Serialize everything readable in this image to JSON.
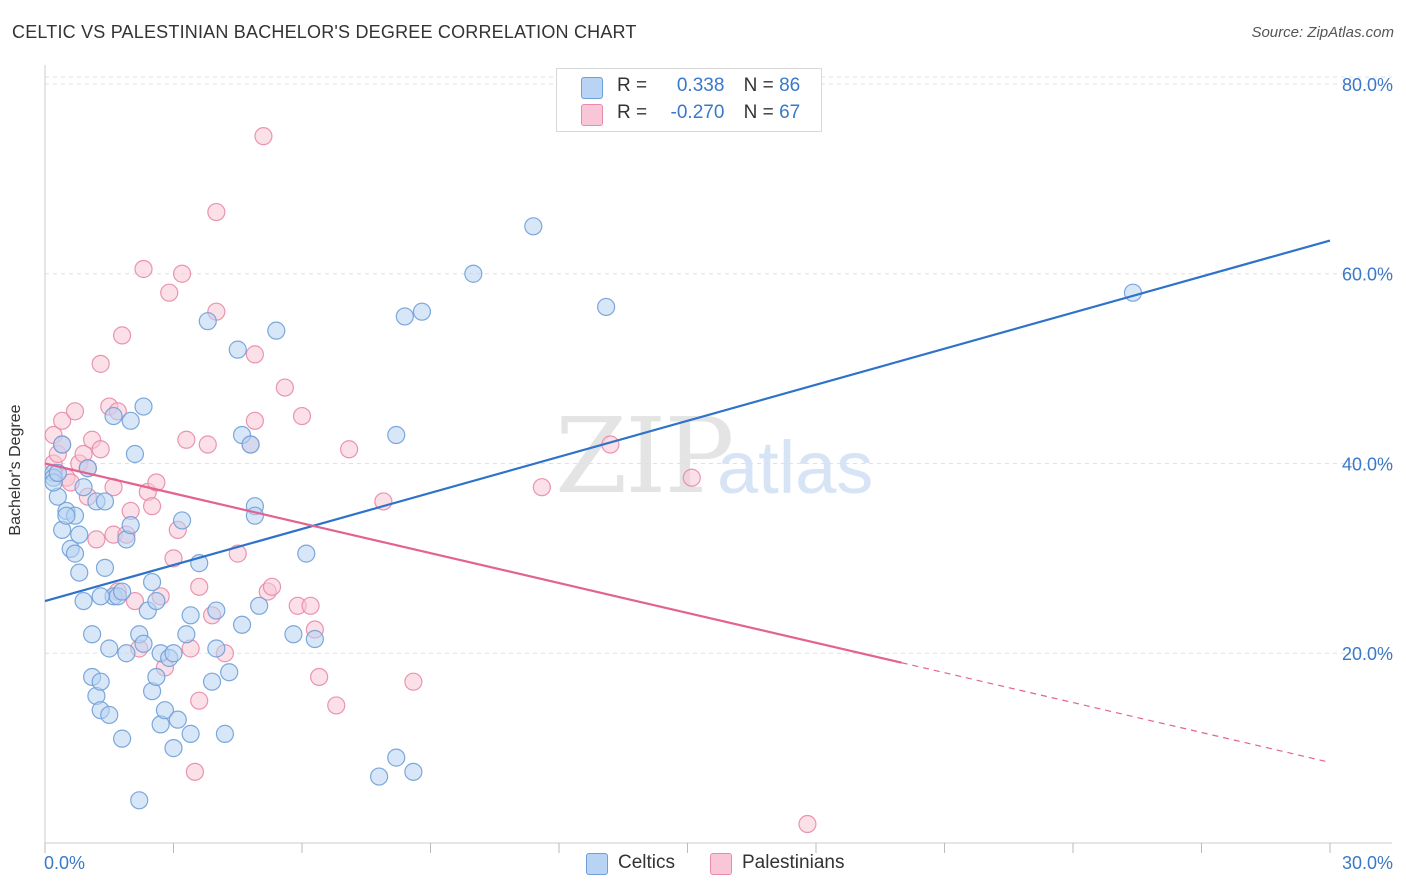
{
  "title": "CELTIC VS PALESTINIAN BACHELOR'S DEGREE CORRELATION CHART",
  "source": "Source: ZipAtlas.com",
  "watermark": {
    "zip": "ZIP",
    "atlas": "atlas"
  },
  "legend": {
    "rows": [
      {
        "r_label": "R =",
        "r_value": "0.338",
        "n_label": "N =",
        "n_value": "86"
      },
      {
        "r_label": "R =",
        "r_value": "-0.270",
        "n_label": "N =",
        "n_value": "67"
      }
    ]
  },
  "colors": {
    "celtic_fill": "#b8d3f3",
    "celtic_stroke": "#6f9fd8",
    "celtic_line": "#2f73c9",
    "palestinian_fill": "#f8c6d6",
    "palestinian_stroke": "#e88aaa",
    "palestinian_line": "#e2638f",
    "tick_label": "#3a78c9",
    "grid": "#e0e0e0"
  },
  "chart_data": {
    "type": "scatter",
    "title": "CELTIC VS PALESTINIAN BACHELOR'S DEGREE CORRELATION CHART",
    "xlabel": "",
    "ylabel": "Bachelor's Degree",
    "xlim": [
      0,
      30
    ],
    "ylim": [
      0,
      82
    ],
    "x_tick_labels": [
      "0.0%",
      "30.0%"
    ],
    "y_ticks": [
      20,
      40,
      60,
      80
    ],
    "y_tick_labels": [
      "20.0%",
      "40.0%",
      "60.0%",
      "80.0%"
    ],
    "grid": "horizontal dashed",
    "legend_position": "bottom-center",
    "series": [
      {
        "name": "Celtics",
        "r": 0.338,
        "n": 86,
        "trend": {
          "x": [
            0,
            30
          ],
          "y": [
            25.5,
            63.5
          ],
          "style": "solid"
        },
        "points": [
          [
            0.2,
            39.0
          ],
          [
            0.2,
            38.5
          ],
          [
            0.3,
            36.5
          ],
          [
            0.4,
            33.0
          ],
          [
            0.4,
            42.0
          ],
          [
            0.5,
            35.0
          ],
          [
            0.6,
            31.0
          ],
          [
            0.7,
            30.5
          ],
          [
            0.7,
            34.5
          ],
          [
            0.8,
            32.5
          ],
          [
            0.8,
            28.5
          ],
          [
            0.9,
            25.5
          ],
          [
            0.9,
            37.5
          ],
          [
            1.0,
            39.5
          ],
          [
            1.1,
            22.0
          ],
          [
            1.1,
            17.5
          ],
          [
            1.2,
            36.0
          ],
          [
            1.2,
            15.5
          ],
          [
            1.3,
            14.0
          ],
          [
            1.3,
            17.0
          ],
          [
            1.4,
            29.0
          ],
          [
            1.4,
            36.0
          ],
          [
            1.5,
            13.5
          ],
          [
            1.5,
            20.5
          ],
          [
            1.6,
            26.0
          ],
          [
            1.6,
            45.0
          ],
          [
            1.7,
            26.0
          ],
          [
            1.8,
            26.5
          ],
          [
            1.8,
            11.0
          ],
          [
            1.9,
            32.0
          ],
          [
            1.9,
            20.0
          ],
          [
            2.0,
            33.5
          ],
          [
            2.0,
            44.5
          ],
          [
            2.1,
            41.0
          ],
          [
            2.2,
            22.0
          ],
          [
            2.3,
            46.0
          ],
          [
            2.3,
            21.0
          ],
          [
            2.4,
            24.5
          ],
          [
            2.5,
            27.5
          ],
          [
            2.5,
            16.0
          ],
          [
            2.6,
            17.5
          ],
          [
            2.6,
            25.5
          ],
          [
            2.7,
            12.5
          ],
          [
            2.7,
            20.0
          ],
          [
            2.8,
            14.0
          ],
          [
            2.9,
            19.5
          ],
          [
            3.0,
            20.0
          ],
          [
            3.0,
            10.0
          ],
          [
            3.1,
            13.0
          ],
          [
            3.2,
            34.0
          ],
          [
            3.3,
            22.0
          ],
          [
            3.4,
            24.0
          ],
          [
            3.4,
            11.5
          ],
          [
            3.6,
            29.5
          ],
          [
            3.8,
            55.0
          ],
          [
            3.9,
            17.0
          ],
          [
            4.0,
            24.5
          ],
          [
            4.0,
            20.5
          ],
          [
            4.2,
            11.5
          ],
          [
            4.3,
            18.0
          ],
          [
            4.5,
            52.0
          ],
          [
            4.6,
            23.0
          ],
          [
            4.6,
            43.0
          ],
          [
            4.8,
            42.0
          ],
          [
            4.9,
            35.5
          ],
          [
            4.9,
            34.5
          ],
          [
            5.0,
            25.0
          ],
          [
            5.4,
            54.0
          ],
          [
            5.8,
            22.0
          ],
          [
            6.1,
            30.5
          ],
          [
            6.3,
            21.5
          ],
          [
            7.8,
            7.0
          ],
          [
            8.2,
            9.0
          ],
          [
            8.2,
            43.0
          ],
          [
            8.4,
            55.5
          ],
          [
            8.6,
            7.5
          ],
          [
            8.8,
            56.0
          ],
          [
            10.0,
            60.0
          ],
          [
            11.4,
            65.0
          ],
          [
            13.1,
            56.5
          ],
          [
            25.4,
            58.0
          ],
          [
            0.2,
            38.0
          ],
          [
            0.5,
            34.5
          ],
          [
            2.2,
            4.5
          ],
          [
            1.3,
            26.0
          ],
          [
            0.3,
            39.0
          ]
        ]
      },
      {
        "name": "Palestinians",
        "r": -0.27,
        "n": 67,
        "trend": {
          "x": [
            0,
            20.0
          ],
          "y": [
            40.0,
            19.0
          ],
          "style": "solid",
          "dashed_extension": {
            "x": [
              20.0,
              30
            ],
            "y": [
              19.0,
              8.5
            ]
          }
        },
        "points": [
          [
            0.2,
            40.0
          ],
          [
            0.2,
            43.0
          ],
          [
            0.3,
            41.0
          ],
          [
            0.4,
            44.5
          ],
          [
            0.4,
            42.0
          ],
          [
            0.5,
            38.5
          ],
          [
            0.6,
            38.0
          ],
          [
            0.7,
            45.5
          ],
          [
            0.8,
            40.0
          ],
          [
            0.9,
            41.0
          ],
          [
            1.0,
            39.5
          ],
          [
            1.0,
            36.5
          ],
          [
            1.1,
            42.5
          ],
          [
            1.2,
            32.0
          ],
          [
            1.3,
            50.5
          ],
          [
            1.3,
            41.5
          ],
          [
            1.5,
            46.0
          ],
          [
            1.6,
            32.5
          ],
          [
            1.6,
            37.5
          ],
          [
            1.7,
            45.5
          ],
          [
            1.7,
            26.5
          ],
          [
            1.8,
            53.5
          ],
          [
            1.9,
            32.5
          ],
          [
            2.0,
            35.0
          ],
          [
            2.1,
            25.5
          ],
          [
            2.2,
            20.5
          ],
          [
            2.3,
            60.5
          ],
          [
            2.4,
            37.0
          ],
          [
            2.5,
            35.5
          ],
          [
            2.6,
            38.0
          ],
          [
            2.7,
            26.0
          ],
          [
            2.8,
            18.5
          ],
          [
            2.9,
            58.0
          ],
          [
            3.0,
            30.0
          ],
          [
            3.1,
            33.0
          ],
          [
            3.2,
            60.0
          ],
          [
            3.3,
            42.5
          ],
          [
            3.4,
            20.5
          ],
          [
            3.5,
            7.5
          ],
          [
            3.6,
            27.0
          ],
          [
            3.6,
            15.0
          ],
          [
            3.8,
            42.0
          ],
          [
            3.9,
            24.0
          ],
          [
            4.0,
            66.5
          ],
          [
            4.0,
            56.0
          ],
          [
            4.2,
            20.0
          ],
          [
            4.5,
            30.5
          ],
          [
            4.8,
            42.0
          ],
          [
            4.9,
            51.5
          ],
          [
            4.9,
            44.5
          ],
          [
            5.1,
            74.5
          ],
          [
            5.2,
            26.5
          ],
          [
            5.3,
            27.0
          ],
          [
            5.6,
            48.0
          ],
          [
            5.9,
            25.0
          ],
          [
            6.0,
            45.0
          ],
          [
            6.2,
            25.0
          ],
          [
            6.3,
            22.5
          ],
          [
            6.4,
            17.5
          ],
          [
            6.8,
            14.5
          ],
          [
            7.1,
            41.5
          ],
          [
            7.9,
            36.0
          ],
          [
            8.6,
            17.0
          ],
          [
            11.6,
            37.5
          ],
          [
            13.2,
            42.0
          ],
          [
            15.1,
            38.5
          ],
          [
            17.8,
            2.0
          ]
        ]
      }
    ]
  }
}
